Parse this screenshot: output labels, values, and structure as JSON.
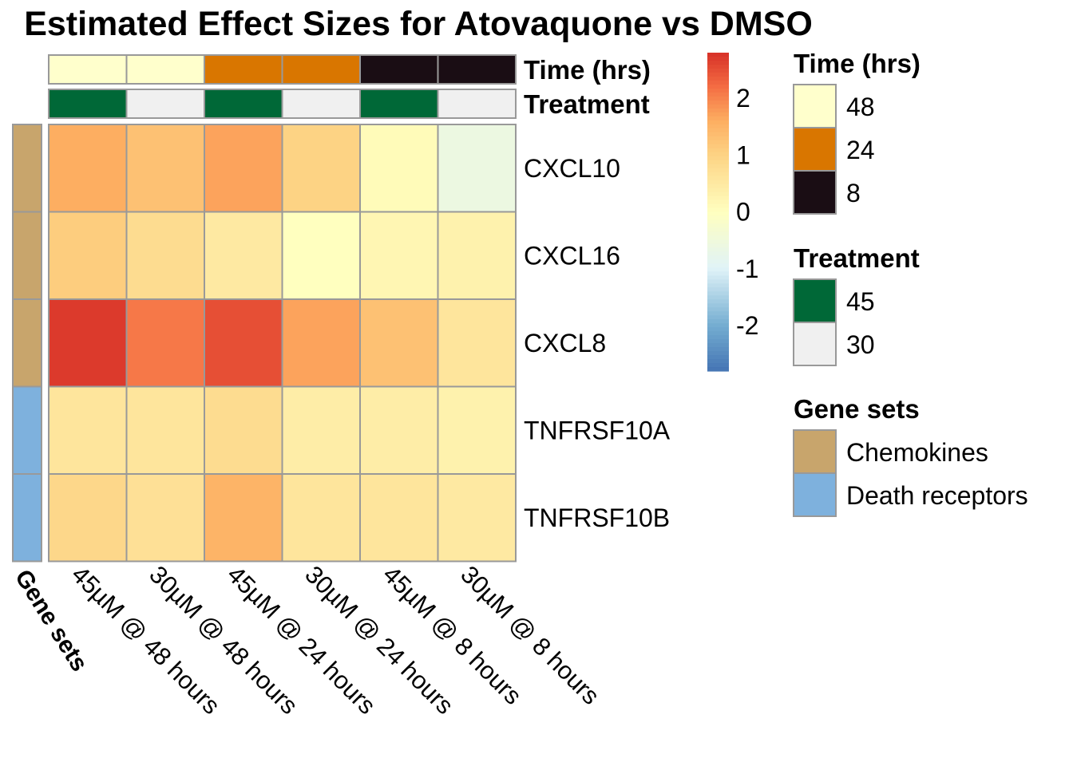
{
  "chart_data": {
    "type": "heatmap",
    "title": "Estimated Effect Sizes for Atovaquone vs DMSO",
    "columns": [
      "45µM @ 48 hours",
      "30µM @ 48 hours",
      "45µM @ 24 hours",
      "30µM @ 24 hours",
      "45µM @ 8 hours",
      "30µM @ 8 hours"
    ],
    "rows": [
      "CXCL10",
      "CXCL16",
      "CXCL8",
      "TNFRSF10A",
      "TNFRSF10B"
    ],
    "values": [
      [
        1.6,
        1.3,
        1.7,
        1.0,
        0.1,
        -0.6
      ],
      [
        1.1,
        0.8,
        0.5,
        0.0,
        0.2,
        0.3
      ],
      [
        2.7,
        2.1,
        2.5,
        1.7,
        1.3,
        0.6
      ],
      [
        0.6,
        0.6,
        0.8,
        0.4,
        0.4,
        0.3
      ],
      [
        0.9,
        0.7,
        1.5,
        0.6,
        0.6,
        0.5
      ]
    ],
    "color_scale": {
      "breaks": [
        -2,
        -1,
        0,
        1,
        2
      ],
      "range": [
        -2.8,
        2.8
      ],
      "stops": [
        {
          "value": -2.8,
          "color": "#4575b4"
        },
        {
          "value": -2.0,
          "color": "#74add1"
        },
        {
          "value": -1.0,
          "color": "#e0f3f8"
        },
        {
          "value": 0.0,
          "color": "#ffffbf"
        },
        {
          "value": 1.0,
          "color": "#fdd384"
        },
        {
          "value": 1.6,
          "color": "#fdae61"
        },
        {
          "value": 2.2,
          "color": "#f46d43"
        },
        {
          "value": 2.8,
          "color": "#d73027"
        }
      ]
    },
    "column_annotations": [
      {
        "name": "Time (hrs)",
        "values": [
          "48",
          "48",
          "24",
          "24",
          "8",
          "8"
        ]
      },
      {
        "name": "Treatment",
        "values": [
          "45",
          "30",
          "45",
          "30",
          "45",
          "30"
        ]
      }
    ],
    "row_annotation": {
      "name": "Gene sets",
      "values": [
        "Chemokines",
        "Chemokines",
        "Chemokines",
        "Death receptors",
        "Death receptors"
      ]
    },
    "legends": [
      {
        "title": "Time (hrs)",
        "entries": [
          {
            "label": "48",
            "color": "#ffffcc"
          },
          {
            "label": "24",
            "color": "#d97600"
          },
          {
            "label": "8",
            "color": "#1a0d14"
          }
        ]
      },
      {
        "title": "Treatment",
        "entries": [
          {
            "label": "45",
            "color": "#006837"
          },
          {
            "label": "30",
            "color": "#f0f0f0"
          }
        ]
      },
      {
        "title": "Gene sets",
        "entries": [
          {
            "label": "Chemokines",
            "color": "#c8a56c"
          },
          {
            "label": "Death receptors",
            "color": "#7eb1dd"
          }
        ]
      }
    ]
  }
}
